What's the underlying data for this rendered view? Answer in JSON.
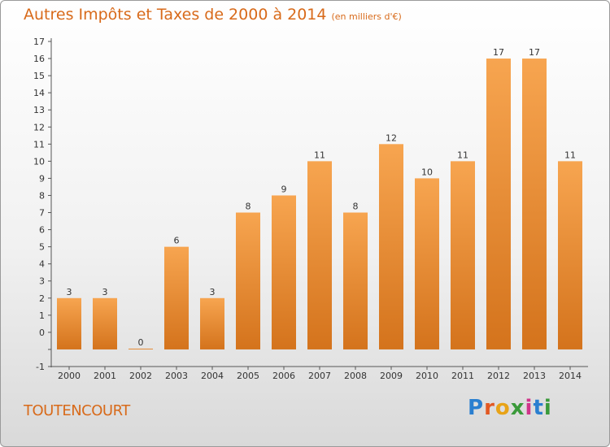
{
  "header": {
    "title": "Autres Impôts et Taxes de 2000 à 2014",
    "unit": "(en milliers d'€)"
  },
  "footer": {
    "commune": "TOUTENCOURT",
    "logo": "Proxiti"
  },
  "colors": {
    "bar_top": "#f7a550",
    "bar_bottom": "#d4731c",
    "title": "#d86a1a"
  },
  "chart_data": {
    "type": "bar",
    "title": "Autres Impôts et Taxes de 2000 à 2014",
    "subtitle": "(en milliers d'€)",
    "xlabel": "",
    "ylabel": "",
    "categories": [
      "2000",
      "2001",
      "2002",
      "2003",
      "2004",
      "2005",
      "2006",
      "2007",
      "2008",
      "2009",
      "2010",
      "2011",
      "2012",
      "2013",
      "2014"
    ],
    "values": [
      3,
      3,
      0,
      6,
      3,
      8,
      9,
      11,
      8,
      12,
      10,
      11,
      17,
      17,
      11
    ],
    "ylim": [
      -1,
      18
    ],
    "yticks": [
      "-1",
      "",
      "0",
      "1",
      "2",
      "3",
      "4",
      "5",
      "6",
      "7",
      "8",
      "9",
      "10",
      "11",
      "12",
      "13",
      "14",
      "15",
      "16",
      "17",
      "18"
    ],
    "grid": false,
    "legend": "none"
  }
}
